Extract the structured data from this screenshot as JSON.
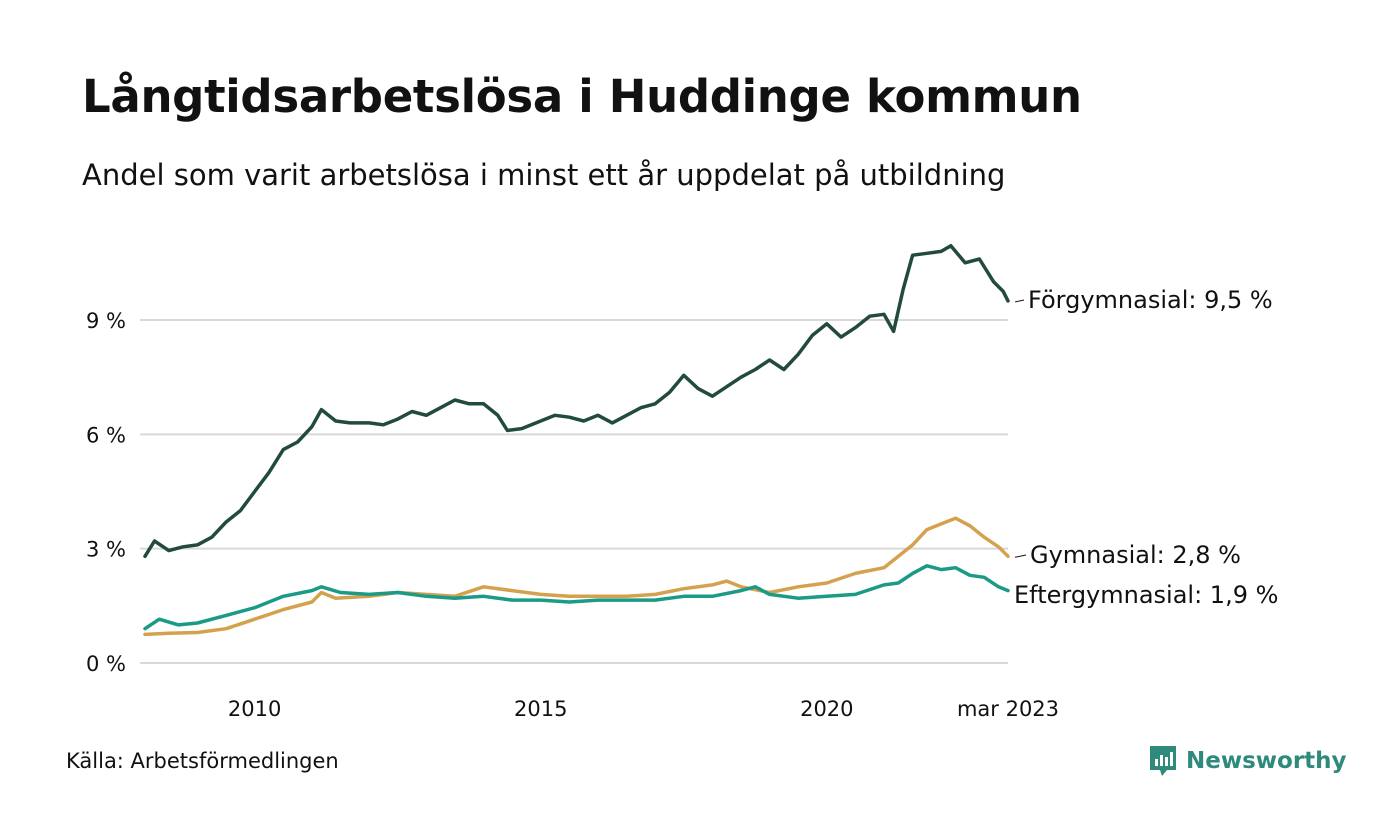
{
  "header": {
    "title": "Långtidsarbetslösa i Huddinge kommun",
    "subtitle": "Andel som varit arbetslösa i minst ett år uppdelat på utbildning"
  },
  "footer": {
    "source": "Källa: Arbetsförmedlingen",
    "brand": "Newsworthy",
    "brand_icon": "newsworthy-chart-icon"
  },
  "colors": {
    "forgymnasial": "#224a40",
    "gymnasial": "#d4a24e",
    "eftergymnasial": "#1a9a87",
    "grid": "#d9d9d9",
    "brand": "#2f8a7c"
  },
  "chart_data": {
    "type": "line",
    "x_start": "2008-02",
    "x_end": "2023-03",
    "xticks": [
      {
        "date": "2010-01",
        "label": "2010"
      },
      {
        "date": "2015-01",
        "label": "2015"
      },
      {
        "date": "2020-01",
        "label": "2020"
      },
      {
        "date": "2023-03",
        "label": "mar 2023"
      }
    ],
    "ylim": [
      0,
      11
    ],
    "yticks": [
      {
        "value": 0,
        "label": "0 %"
      },
      {
        "value": 3,
        "label": "3 %"
      },
      {
        "value": 6,
        "label": "6 %"
      },
      {
        "value": 9,
        "label": "9 %"
      }
    ],
    "grid": true,
    "series": [
      {
        "name": "Förgymnasial",
        "end_label": "Förgymnasial: 9,5 %",
        "color": "#224a40",
        "points": [
          [
            "2008-02",
            2.8
          ],
          [
            "2008-04",
            3.2
          ],
          [
            "2008-07",
            2.95
          ],
          [
            "2008-10",
            3.05
          ],
          [
            "2009-01",
            3.1
          ],
          [
            "2009-04",
            3.3
          ],
          [
            "2009-07",
            3.7
          ],
          [
            "2009-10",
            4.0
          ],
          [
            "2010-01",
            4.5
          ],
          [
            "2010-04",
            5.0
          ],
          [
            "2010-07",
            5.6
          ],
          [
            "2010-10",
            5.8
          ],
          [
            "2011-01",
            6.2
          ],
          [
            "2011-03",
            6.65
          ],
          [
            "2011-06",
            6.35
          ],
          [
            "2011-09",
            6.3
          ],
          [
            "2012-01",
            6.3
          ],
          [
            "2012-04",
            6.25
          ],
          [
            "2012-07",
            6.4
          ],
          [
            "2012-10",
            6.6
          ],
          [
            "2013-01",
            6.5
          ],
          [
            "2013-04",
            6.7
          ],
          [
            "2013-07",
            6.9
          ],
          [
            "2013-10",
            6.8
          ],
          [
            "2014-01",
            6.8
          ],
          [
            "2014-04",
            6.5
          ],
          [
            "2014-06",
            6.1
          ],
          [
            "2014-09",
            6.15
          ],
          [
            "2015-01",
            6.35
          ],
          [
            "2015-04",
            6.5
          ],
          [
            "2015-07",
            6.45
          ],
          [
            "2015-10",
            6.35
          ],
          [
            "2016-01",
            6.5
          ],
          [
            "2016-04",
            6.3
          ],
          [
            "2016-07",
            6.5
          ],
          [
            "2016-10",
            6.7
          ],
          [
            "2017-01",
            6.8
          ],
          [
            "2017-04",
            7.1
          ],
          [
            "2017-07",
            7.55
          ],
          [
            "2017-10",
            7.2
          ],
          [
            "2018-01",
            7.0
          ],
          [
            "2018-04",
            7.25
          ],
          [
            "2018-07",
            7.5
          ],
          [
            "2018-10",
            7.7
          ],
          [
            "2019-01",
            7.95
          ],
          [
            "2019-04",
            7.7
          ],
          [
            "2019-07",
            8.1
          ],
          [
            "2019-10",
            8.6
          ],
          [
            "2020-01",
            8.9
          ],
          [
            "2020-04",
            8.55
          ],
          [
            "2020-07",
            8.8
          ],
          [
            "2020-10",
            9.1
          ],
          [
            "2021-01",
            9.15
          ],
          [
            "2021-03",
            8.7
          ],
          [
            "2021-05",
            9.8
          ],
          [
            "2021-07",
            10.7
          ],
          [
            "2021-10",
            10.75
          ],
          [
            "2022-01",
            10.8
          ],
          [
            "2022-03",
            10.95
          ],
          [
            "2022-06",
            10.5
          ],
          [
            "2022-09",
            10.6
          ],
          [
            "2022-12",
            10.0
          ],
          [
            "2023-02",
            9.75
          ],
          [
            "2023-03",
            9.5
          ]
        ]
      },
      {
        "name": "Gymnasial",
        "end_label": "Gymnasial: 2,8 %",
        "color": "#d4a24e",
        "points": [
          [
            "2008-02",
            0.75
          ],
          [
            "2008-07",
            0.78
          ],
          [
            "2009-01",
            0.8
          ],
          [
            "2009-07",
            0.9
          ],
          [
            "2010-01",
            1.15
          ],
          [
            "2010-07",
            1.4
          ],
          [
            "2011-01",
            1.6
          ],
          [
            "2011-03",
            1.85
          ],
          [
            "2011-06",
            1.7
          ],
          [
            "2012-01",
            1.75
          ],
          [
            "2012-07",
            1.85
          ],
          [
            "2013-01",
            1.8
          ],
          [
            "2013-07",
            1.75
          ],
          [
            "2014-01",
            2.0
          ],
          [
            "2014-07",
            1.9
          ],
          [
            "2015-01",
            1.8
          ],
          [
            "2015-07",
            1.75
          ],
          [
            "2016-01",
            1.75
          ],
          [
            "2016-07",
            1.75
          ],
          [
            "2017-01",
            1.8
          ],
          [
            "2017-07",
            1.95
          ],
          [
            "2018-01",
            2.05
          ],
          [
            "2018-04",
            2.15
          ],
          [
            "2018-07",
            2.0
          ],
          [
            "2019-01",
            1.85
          ],
          [
            "2019-07",
            2.0
          ],
          [
            "2020-01",
            2.1
          ],
          [
            "2020-07",
            2.35
          ],
          [
            "2021-01",
            2.5
          ],
          [
            "2021-07",
            3.1
          ],
          [
            "2021-10",
            3.5
          ],
          [
            "2022-01",
            3.65
          ],
          [
            "2022-04",
            3.8
          ],
          [
            "2022-07",
            3.6
          ],
          [
            "2022-10",
            3.3
          ],
          [
            "2023-01",
            3.05
          ],
          [
            "2023-03",
            2.8
          ]
        ]
      },
      {
        "name": "Eftergymnasial",
        "end_label": "Eftergymnasial: 1,9 %",
        "color": "#1a9a87",
        "points": [
          [
            "2008-02",
            0.9
          ],
          [
            "2008-05",
            1.15
          ],
          [
            "2008-09",
            1.0
          ],
          [
            "2009-01",
            1.05
          ],
          [
            "2009-07",
            1.25
          ],
          [
            "2010-01",
            1.45
          ],
          [
            "2010-07",
            1.75
          ],
          [
            "2011-01",
            1.9
          ],
          [
            "2011-03",
            2.0
          ],
          [
            "2011-07",
            1.85
          ],
          [
            "2012-01",
            1.8
          ],
          [
            "2012-07",
            1.85
          ],
          [
            "2013-01",
            1.75
          ],
          [
            "2013-07",
            1.7
          ],
          [
            "2014-01",
            1.75
          ],
          [
            "2014-07",
            1.65
          ],
          [
            "2015-01",
            1.65
          ],
          [
            "2015-07",
            1.6
          ],
          [
            "2016-01",
            1.65
          ],
          [
            "2016-07",
            1.65
          ],
          [
            "2017-01",
            1.65
          ],
          [
            "2017-07",
            1.75
          ],
          [
            "2018-01",
            1.75
          ],
          [
            "2018-07",
            1.9
          ],
          [
            "2018-10",
            2.0
          ],
          [
            "2019-01",
            1.8
          ],
          [
            "2019-07",
            1.7
          ],
          [
            "2020-01",
            1.75
          ],
          [
            "2020-07",
            1.8
          ],
          [
            "2021-01",
            2.05
          ],
          [
            "2021-04",
            2.1
          ],
          [
            "2021-07",
            2.35
          ],
          [
            "2021-10",
            2.55
          ],
          [
            "2022-01",
            2.45
          ],
          [
            "2022-04",
            2.5
          ],
          [
            "2022-07",
            2.3
          ],
          [
            "2022-10",
            2.25
          ],
          [
            "2023-01",
            2.0
          ],
          [
            "2023-03",
            1.9
          ]
        ]
      }
    ]
  }
}
